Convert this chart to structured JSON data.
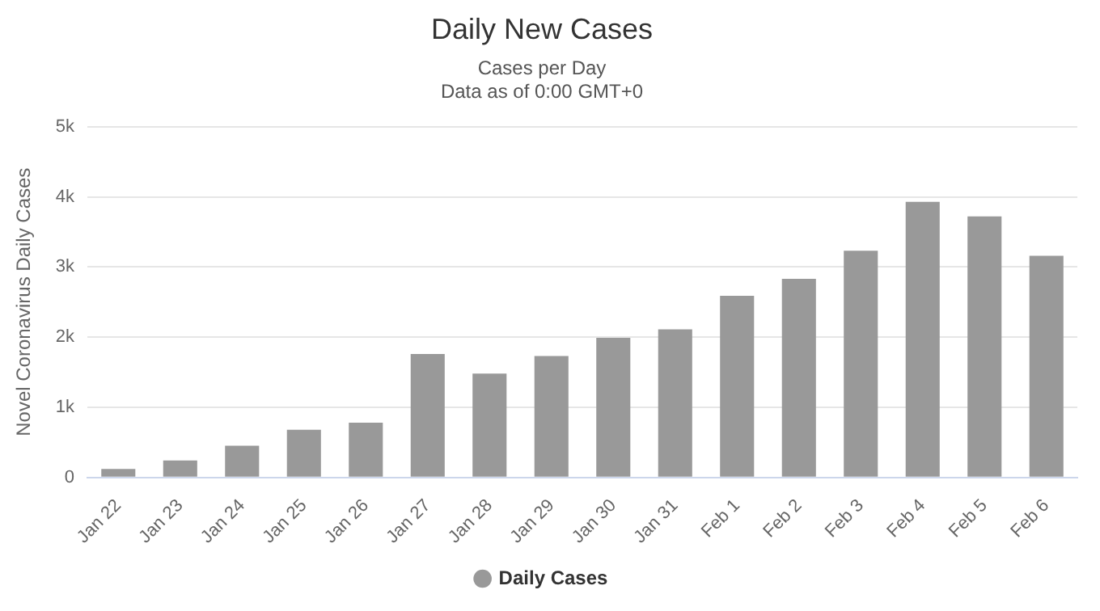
{
  "chart_data": {
    "type": "bar",
    "title": "Daily New Cases",
    "subtitle": "Cases per Day\nData as of 0:00 GMT+0",
    "ylabel": "Novel Coronavirus Daily Cases",
    "categories": [
      "Jan 22",
      "Jan 23",
      "Jan 24",
      "Jan 25",
      "Jan 26",
      "Jan 27",
      "Jan 28",
      "Jan 29",
      "Jan 30",
      "Jan 31",
      "Feb 1",
      "Feb 2",
      "Feb 3",
      "Feb 4",
      "Feb 5",
      "Feb 6"
    ],
    "series": [
      {
        "name": "Daily Cases",
        "color": "#999999",
        "values": [
          120,
          240,
          450,
          680,
          780,
          1760,
          1480,
          1730,
          1990,
          2110,
          2590,
          2830,
          3230,
          3930,
          3720,
          3160
        ]
      }
    ],
    "ylim": [
      0,
      5000
    ],
    "yticks": [
      0,
      {
        "value": 1000,
        "label": "1k"
      },
      {
        "value": 2000,
        "label": "2k"
      },
      {
        "value": 3000,
        "label": "3k"
      },
      {
        "value": 4000,
        "label": "4k"
      },
      {
        "value": 5000,
        "label": "5k"
      }
    ],
    "grid": "y",
    "legend": "bottom",
    "marker": "circle"
  }
}
